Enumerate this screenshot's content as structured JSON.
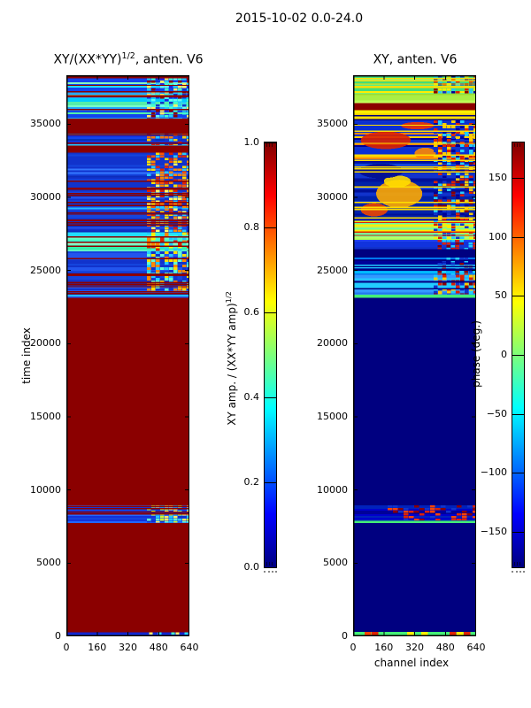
{
  "figure": {
    "title": "2015-10-02 0.0-24.0",
    "background": "#ffffff"
  },
  "chart_data": [
    {
      "type": "heatmap",
      "title_base": "XY/(XX*YY)",
      "title_sup": "1/2",
      "title_rest": ", anten. V6",
      "xlabel": "",
      "ylabel": "time index",
      "xlim": [
        0,
        640
      ],
      "ylim": [
        0,
        38350
      ],
      "x_ticks": {
        "values": [
          0,
          160,
          320,
          480,
          640
        ],
        "labels": [
          "0",
          "160",
          "320",
          "480",
          "640"
        ]
      },
      "y_ticks": {
        "values": [
          0,
          5000,
          10000,
          15000,
          20000,
          25000,
          30000,
          35000
        ],
        "labels": [
          "0",
          "5000",
          "10000",
          "15000",
          "20000",
          "25000",
          "30000",
          "35000"
        ]
      },
      "colormap": "jet",
      "value_range": [
        0,
        1
      ],
      "colorbar": {
        "label_base": "XY amp. / (XX*YY amp)",
        "label_sup": "1/2",
        "range": [
          0,
          1
        ],
        "ticks": {
          "values": [
            1.0,
            0.8,
            0.6,
            0.4,
            0.2,
            0.0
          ],
          "labels": [
            "1.0",
            "0.8",
            "0.6",
            "0.4",
            "0.2",
            "0.0"
          ]
        },
        "gradient": [
          [
            0,
            "#800000"
          ],
          [
            0.125,
            "#ff0000"
          ],
          [
            0.375,
            "#ffff00"
          ],
          [
            0.5,
            "#7dff7a"
          ],
          [
            0.625,
            "#00ffff"
          ],
          [
            0.875,
            "#0000ff"
          ],
          [
            1,
            "#000080"
          ]
        ]
      },
      "bands": [
        {
          "t": [
            35400,
            38350
          ],
          "seed": 11,
          "style": "rows",
          "row_colors": [
            "#22ddff",
            "#55eeaa",
            "#77ffcc",
            "#22aaff",
            "#1144ee",
            "#00ccff",
            "#88ffbb",
            "#33ccff"
          ],
          "stripes": {
            "count": 9,
            "color": "#8b0000"
          },
          "checker": {
            "ch": [
              420,
              640
            ],
            "cw": 5,
            "chh": 3,
            "density": 0.85,
            "palette": [
              "#22ccff",
              "#1133cc",
              "#8b0000",
              "#44ffcc",
              "#ffee66",
              "#2222dd",
              "#66ffee"
            ]
          }
        },
        {
          "t": [
            34350,
            35400
          ],
          "style": "solid",
          "color": "#8b0000"
        },
        {
          "t": [
            33550,
            34350
          ],
          "seed": 12,
          "style": "rows",
          "row_colors": [
            "#1133dd",
            "#0099ff",
            "#1144ee",
            "#22ccff",
            "#0033bb"
          ],
          "stripes": {
            "count": 2,
            "color": "#8b0000"
          },
          "checker": {
            "ch": [
              420,
              640
            ],
            "cw": 5,
            "chh": 3,
            "density": 0.7,
            "palette": [
              "#ffcc00",
              "#ff7700",
              "#1133cc",
              "#22ccff",
              "#dd2200"
            ]
          }
        },
        {
          "t": [
            33050,
            33550
          ],
          "style": "solid",
          "color": "#8b0000"
        },
        {
          "t": [
            27600,
            33050
          ],
          "seed": 13,
          "style": "rows",
          "row_colors": [
            "#1133cc",
            "#0d2cbb",
            "#1544dd",
            "#2255ee",
            "#1133cc",
            "#1133cc",
            "#3377ff",
            "#22bbff"
          ],
          "stripes": {
            "count": 16,
            "color": "#8b0000"
          },
          "checker": {
            "ch": [
              420,
              640
            ],
            "cw": 5,
            "chh": 3,
            "density": 0.8,
            "palette": [
              "#ffdd00",
              "#ff8800",
              "#dd2200",
              "#ffff66",
              "#22ccff",
              "#1133cc",
              "#ff5500"
            ]
          }
        },
        {
          "t": [
            26300,
            27600
          ],
          "seed": 14,
          "style": "rows",
          "row_colors": [
            "#44ffbb",
            "#66ffcc",
            "#22ddff",
            "#99ffcc",
            "#33eeaa"
          ],
          "stripes": {
            "count": 4,
            "color": "#8b0000"
          },
          "checker": {
            "ch": [
              420,
              640
            ],
            "cw": 5,
            "chh": 3,
            "density": 0.75,
            "palette": [
              "#ffee00",
              "#ff8800",
              "#44ffcc",
              "#22ccff",
              "#dd2200"
            ]
          }
        },
        {
          "t": [
            23600,
            26300
          ],
          "seed": 15,
          "style": "rows",
          "row_colors": [
            "#1133cc",
            "#1544dd",
            "#2255ee",
            "#1133cc",
            "#22bbff",
            "#1133cc"
          ],
          "stripes": {
            "count": 8,
            "color": "#8b0000"
          },
          "checker": {
            "ch": [
              420,
              640
            ],
            "cw": 5,
            "chh": 3,
            "density": 0.75,
            "palette": [
              "#ffdd00",
              "#ff8800",
              "#22ccff",
              "#1133cc",
              "#66ffcc"
            ]
          }
        },
        {
          "t": [
            23150,
            23600
          ],
          "seed": 16,
          "style": "rows",
          "row_colors": [
            "#1133cc",
            "#2255ee",
            "#22bbff"
          ],
          "stripes": {
            "count": 2,
            "color": "#8b0000"
          }
        },
        {
          "t": [
            8950,
            23150
          ],
          "style": "solid",
          "color": "#8b0000"
        },
        {
          "t": [
            7750,
            8950
          ],
          "seed": 17,
          "style": "rows",
          "row_colors": [
            "#1133dd",
            "#1544dd",
            "#2266ff"
          ],
          "stripes": {
            "count": 5,
            "color": "#8b0000"
          },
          "checker": {
            "ch": [
              420,
              640
            ],
            "cw": 5,
            "chh": 3,
            "density": 0.75,
            "palette": [
              "#ccff33",
              "#66ffcc",
              "#22ccff",
              "#ffee66",
              "#1133cc"
            ]
          }
        },
        {
          "t": [
            280,
            7750
          ],
          "style": "solid",
          "color": "#8b0000"
        },
        {
          "t": [
            0,
            280
          ],
          "seed": 18,
          "style": "rows",
          "row_colors": [
            "#1122cc",
            "#1133dd"
          ],
          "checker": {
            "ch": [
              430,
              640
            ],
            "cw": 5,
            "chh": 3,
            "density": 0.5,
            "palette": [
              "#22ddff",
              "#44ffcc",
              "#ffee66"
            ]
          }
        }
      ]
    },
    {
      "type": "heatmap",
      "title_base": "XY",
      "title_sup": "",
      "title_rest": ", anten. V6",
      "xlabel": "channel index",
      "ylabel": "",
      "xlim": [
        0,
        640
      ],
      "ylim": [
        0,
        38350
      ],
      "x_ticks": {
        "values": [
          0,
          160,
          320,
          480,
          640
        ],
        "labels": [
          "0",
          "160",
          "320",
          "480",
          "640"
        ]
      },
      "y_ticks": {
        "values": [
          0,
          5000,
          10000,
          15000,
          20000,
          25000,
          30000,
          35000
        ],
        "labels": [
          "0",
          "5000",
          "10000",
          "15000",
          "20000",
          "25000",
          "30000",
          "35000"
        ]
      },
      "colormap": "jet",
      "value_range": [
        -180,
        180
      ],
      "colorbar": {
        "label_base": "phase (deg.)",
        "label_sup": "",
        "range": [
          -180,
          180
        ],
        "ticks": {
          "values": [
            150,
            100,
            50,
            0,
            -50,
            -100,
            -150
          ],
          "labels": [
            "150",
            "100",
            "50",
            "0",
            "−50",
            "−100",
            "−150"
          ]
        },
        "gradient": [
          [
            0,
            "#800000"
          ],
          [
            0.125,
            "#ff0000"
          ],
          [
            0.375,
            "#ffff00"
          ],
          [
            0.5,
            "#7dff7a"
          ],
          [
            0.625,
            "#00ffff"
          ],
          [
            0.875,
            "#0000ff"
          ],
          [
            1,
            "#000080"
          ]
        ]
      },
      "bands": [
        {
          "t": [
            37100,
            38350
          ],
          "seed": 21,
          "style": "rows",
          "row_colors": [
            "#55ee88",
            "#66ffaa",
            "#44dd77",
            "#88ffbb",
            "#ffee00",
            "#55ee88"
          ],
          "stripes": {
            "count": 5,
            "color": "#ffdd00"
          },
          "checker": {
            "ch": [
              420,
              640
            ],
            "cw": 5,
            "chh": 3,
            "density": 0.8,
            "palette": [
              "#1133cc",
              "#dd2200",
              "#000099",
              "#22ccff",
              "#ffee00",
              "#8b0000"
            ]
          }
        },
        {
          "t": [
            36450,
            37100
          ],
          "seed": 22,
          "style": "rows",
          "row_colors": [
            "#aaee44",
            "#bbff55",
            "#99dd33",
            "#ccff66"
          ]
        },
        {
          "t": [
            35950,
            36450
          ],
          "style": "solid",
          "color": "#8b0000"
        },
        {
          "t": [
            35250,
            35950
          ],
          "seed": 23,
          "style": "rows",
          "row_colors": [
            "#ffee00",
            "#ffdd00",
            "#eecc00",
            "#ffff33"
          ],
          "stripes": {
            "count": 2,
            "color": "#000080"
          }
        },
        {
          "t": [
            32400,
            35250
          ],
          "seed": 24,
          "style": "rows",
          "row_colors": [
            "#0a2fd4",
            "#000099",
            "#1133cc",
            "#ff8800",
            "#0a2fd4",
            "#000099",
            "#ffcc00",
            "#0a2fd4"
          ],
          "stripes": {
            "count": 5,
            "color": "#ffdd00"
          },
          "blobs": [
            {
              "ch": [
                40,
                300
              ],
              "t": [
                33300,
                34500
              ],
              "color": "#dd2200"
            },
            {
              "ch": [
                250,
                420
              ],
              "t": [
                34650,
                35150
              ],
              "color": "#ee3300"
            },
            {
              "ch": [
                320,
                430
              ],
              "t": [
                32600,
                33400
              ],
              "color": "#ff8800"
            }
          ],
          "checker": {
            "ch": [
              420,
              640
            ],
            "cw": 5,
            "chh": 3,
            "density": 0.75,
            "palette": [
              "#dd2200",
              "#1133cc",
              "#000099",
              "#22ccff",
              "#ffcc00"
            ]
          }
        },
        {
          "t": [
            28400,
            32400
          ],
          "seed": 25,
          "style": "rows",
          "row_colors": [
            "#0022aa",
            "#001199",
            "#1133cc",
            "#0022aa",
            "#2255ee",
            "#0022aa"
          ],
          "stripes": {
            "count": 9,
            "color": "#ffdd00"
          },
          "blobs": [
            {
              "ch": [
                120,
                360
              ],
              "t": [
                29300,
                31200
              ],
              "color": "#ffaa00"
            },
            {
              "ch": [
                160,
                300
              ],
              "t": [
                30700,
                31500
              ],
              "color": "#ffdd00"
            },
            {
              "ch": [
                30,
                260
              ],
              "t": [
                31300,
                32300
              ],
              "color": "#000d8f"
            },
            {
              "ch": [
                40,
                180
              ],
              "t": [
                28700,
                29600
              ],
              "color": "#ee4400"
            }
          ],
          "checker": {
            "ch": [
              420,
              640
            ],
            "cw": 5,
            "chh": 3,
            "density": 0.7,
            "palette": [
              "#dd2200",
              "#1133cc",
              "#ffcc00",
              "#22ccff",
              "#8b0000",
              "#000099"
            ]
          }
        },
        {
          "t": [
            27100,
            28400
          ],
          "seed": 26,
          "style": "rows",
          "row_colors": [
            "#ccee44",
            "#aaff55",
            "#00ddcc",
            "#ffee00",
            "#66ffaa",
            "#bbff66"
          ],
          "stripes": {
            "count": 3,
            "color": "#dd2200"
          },
          "checker": {
            "ch": [
              420,
              640
            ],
            "cw": 5,
            "chh": 3,
            "density": 0.7,
            "palette": [
              "#dd2200",
              "#1133cc",
              "#ffee00",
              "#22ccff"
            ]
          }
        },
        {
          "t": [
            26450,
            27100
          ],
          "seed": 27,
          "style": "rows",
          "row_colors": [
            "#1133dd",
            "#2244ee",
            "#1133cc"
          ],
          "checker": {
            "ch": [
              440,
              640
            ],
            "cw": 5,
            "chh": 3,
            "density": 0.6,
            "palette": [
              "#dd2200",
              "#22ccff",
              "#8b0000"
            ]
          }
        },
        {
          "t": [
            25900,
            26450
          ],
          "style": "solid",
          "color": "#000080"
        },
        {
          "t": [
            24700,
            25900
          ],
          "seed": 28,
          "style": "rows",
          "row_colors": [
            "#00aaff",
            "#22ccff",
            "#0077ee",
            "#000099",
            "#00bbff"
          ],
          "stripes": {
            "count": 4,
            "color": "#000080"
          },
          "checker": {
            "ch": [
              440,
              640
            ],
            "cw": 5,
            "chh": 3,
            "density": 0.6,
            "palette": [
              "#dd2200",
              "#1133cc",
              "#8b0000",
              "#22ccff"
            ]
          }
        },
        {
          "t": [
            23350,
            24700
          ],
          "seed": 29,
          "style": "rows",
          "row_colors": [
            "#3399ff",
            "#22ccff",
            "#2277ee",
            "#55bbff"
          ],
          "stripes": {
            "count": 3,
            "color": "#000080"
          },
          "checker": {
            "ch": [
              420,
              640
            ],
            "cw": 5,
            "chh": 3,
            "density": 0.7,
            "palette": [
              "#dd2200",
              "#ffcc00",
              "#1133cc",
              "#22ccff",
              "#8b0000"
            ]
          }
        },
        {
          "t": [
            23150,
            23350
          ],
          "style": "solid",
          "color": "#44ee77"
        },
        {
          "t": [
            8950,
            23150
          ],
          "style": "solid",
          "color": "#000080"
        },
        {
          "t": [
            7900,
            8950
          ],
          "seed": 30,
          "style": "rows",
          "row_colors": [
            "#000099",
            "#0000cc",
            "#000080",
            "#0022bb"
          ],
          "checker": {
            "ch": [
              180,
              640
            ],
            "cw": 6,
            "chh": 3,
            "density": 0.45,
            "palette": [
              "#dd2200",
              "#8b0000",
              "#ff4400",
              "#1133cc"
            ]
          }
        },
        {
          "t": [
            7750,
            7900
          ],
          "style": "solid",
          "color": "#44ee77"
        },
        {
          "t": [
            300,
            7750
          ],
          "style": "solid",
          "color": "#000080"
        },
        {
          "t": [
            0,
            300
          ],
          "seed": 31,
          "style": "rows",
          "row_colors": [
            "#33dd66",
            "#44ee77"
          ],
          "checker": {
            "ch": [
              60,
              640
            ],
            "cw": 8,
            "chh": 4,
            "density": 0.4,
            "palette": [
              "#dd2200",
              "#ff4400",
              "#ffee00"
            ]
          }
        }
      ]
    }
  ]
}
